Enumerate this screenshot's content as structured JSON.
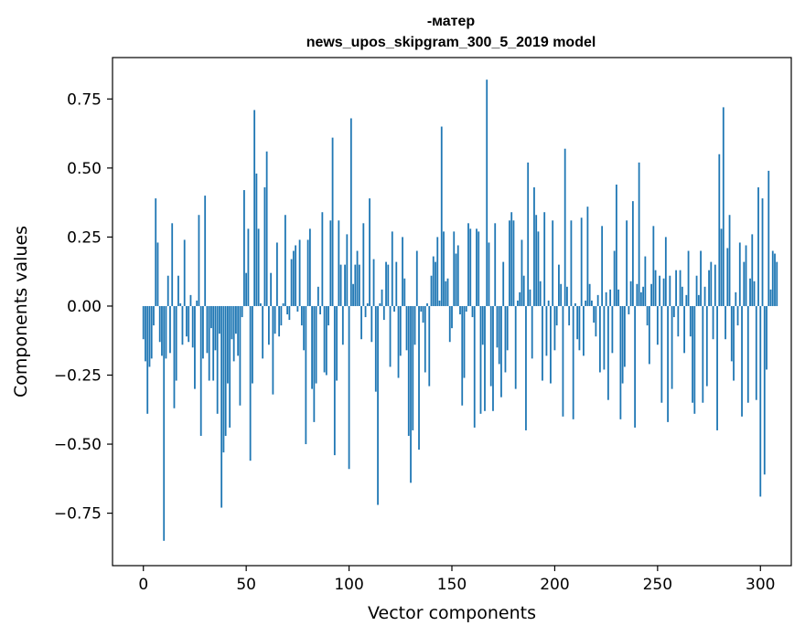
{
  "chart_data": {
    "type": "bar",
    "title_line1": "-матер",
    "title_line2": "news_upos_skipgram_300_5_2019 model",
    "xlabel": "Vector components",
    "ylabel": "Components values",
    "xlim": [
      -15,
      315
    ],
    "ylim": [
      -0.94,
      0.9
    ],
    "xticks": [
      0,
      50,
      100,
      150,
      200,
      250,
      300
    ],
    "yticks": [
      -0.75,
      -0.5,
      -0.25,
      0.0,
      0.25,
      0.5,
      0.75
    ],
    "ytick_labels": [
      "−0.75",
      "−0.50",
      "−0.25",
      "0.00",
      "0.25",
      "0.50",
      "0.75"
    ],
    "grid": false,
    "bar_color": "#1f77b4",
    "values": [
      -0.12,
      -0.2,
      -0.39,
      -0.22,
      -0.19,
      -0.07,
      0.39,
      0.23,
      -0.13,
      -0.18,
      -0.85,
      -0.19,
      0.11,
      -0.17,
      0.3,
      -0.37,
      -0.27,
      0.11,
      0.01,
      -0.14,
      0.24,
      -0.11,
      -0.13,
      0.04,
      -0.15,
      -0.3,
      0.02,
      0.33,
      -0.47,
      -0.19,
      0.4,
      -0.17,
      -0.27,
      -0.08,
      -0.27,
      -0.16,
      -0.39,
      -0.1,
      -0.73,
      -0.53,
      -0.47,
      -0.28,
      -0.44,
      -0.12,
      -0.2,
      -0.1,
      -0.18,
      -0.36,
      -0.04,
      0.42,
      0.12,
      0.28,
      -0.56,
      -0.28,
      0.71,
      0.48,
      0.28,
      0.01,
      -0.19,
      0.43,
      0.56,
      -0.14,
      0.12,
      -0.32,
      -0.1,
      0.23,
      -0.11,
      -0.07,
      0.01,
      0.33,
      -0.03,
      -0.05,
      0.17,
      0.2,
      0.22,
      -0.02,
      0.24,
      -0.07,
      -0.16,
      -0.5,
      0.24,
      0.28,
      -0.3,
      -0.42,
      -0.28,
      0.07,
      -0.03,
      0.34,
      -0.24,
      -0.25,
      -0.07,
      0.31,
      0.61,
      -0.54,
      -0.27,
      0.31,
      0.15,
      -0.14,
      0.15,
      0.26,
      -0.59,
      0.68,
      0.08,
      0.15,
      0.2,
      0.15,
      -0.12,
      0.3,
      -0.04,
      0.01,
      0.39,
      -0.13,
      0.17,
      -0.31,
      -0.72,
      0.01,
      0.06,
      -0.05,
      0.16,
      0.15,
      -0.22,
      0.27,
      -0.02,
      0.16,
      -0.26,
      -0.18,
      0.25,
      0.1,
      -0.16,
      -0.47,
      -0.64,
      -0.45,
      -0.14,
      0.2,
      -0.52,
      -0.02,
      -0.06,
      -0.24,
      0.01,
      -0.29,
      0.11,
      0.18,
      0.16,
      0.25,
      0.02,
      0.65,
      0.27,
      0.09,
      0.1,
      -0.13,
      -0.08,
      0.27,
      0.19,
      0.22,
      -0.03,
      -0.36,
      -0.26,
      -0.02,
      0.3,
      0.28,
      -0.04,
      -0.44,
      0.28,
      0.27,
      -0.39,
      -0.14,
      -0.38,
      0.82,
      0.23,
      -0.29,
      -0.38,
      0.3,
      -0.15,
      -0.21,
      -0.33,
      0.16,
      -0.24,
      -0.16,
      0.31,
      0.34,
      0.31,
      -0.3,
      0.02,
      0.05,
      0.24,
      0.11,
      -0.45,
      0.52,
      0.06,
      -0.19,
      0.43,
      0.33,
      0.27,
      0.09,
      -0.27,
      0.34,
      -0.18,
      0.02,
      -0.28,
      0.31,
      -0.16,
      -0.07,
      0.15,
      0.08,
      -0.4,
      0.57,
      0.07,
      -0.07,
      0.31,
      -0.41,
      0.01,
      -0.12,
      -0.16,
      0.32,
      -0.18,
      0.02,
      0.36,
      0.08,
      0.02,
      -0.06,
      -0.11,
      0.04,
      -0.24,
      0.29,
      -0.23,
      0.05,
      -0.34,
      0.06,
      -0.17,
      0.2,
      0.44,
      0.06,
      -0.41,
      -0.28,
      -0.22,
      0.31,
      -0.03,
      0.09,
      0.38,
      -0.44,
      0.08,
      0.52,
      0.05,
      0.07,
      0.18,
      -0.07,
      -0.21,
      0.08,
      0.29,
      0.13,
      -0.14,
      0.11,
      -0.35,
      0.1,
      0.25,
      -0.42,
      0.11,
      -0.3,
      -0.04,
      0.13,
      -0.11,
      0.13,
      0.07,
      -0.17,
      0.04,
      0.2,
      -0.11,
      -0.35,
      -0.39,
      0.11,
      0.04,
      0.2,
      -0.35,
      0.07,
      -0.29,
      0.13,
      0.16,
      -0.12,
      0.15,
      -0.45,
      0.55,
      0.28,
      0.72,
      -0.12,
      0.21,
      0.33,
      -0.2,
      -0.27,
      0.05,
      -0.07,
      0.23,
      -0.4,
      0.16,
      0.22,
      -0.35,
      0.1,
      0.26,
      0.09,
      -0.34,
      0.43,
      -0.69,
      0.39,
      -0.61,
      -0.23,
      0.49,
      0.06,
      0.2,
      0.19,
      0.16
    ]
  }
}
